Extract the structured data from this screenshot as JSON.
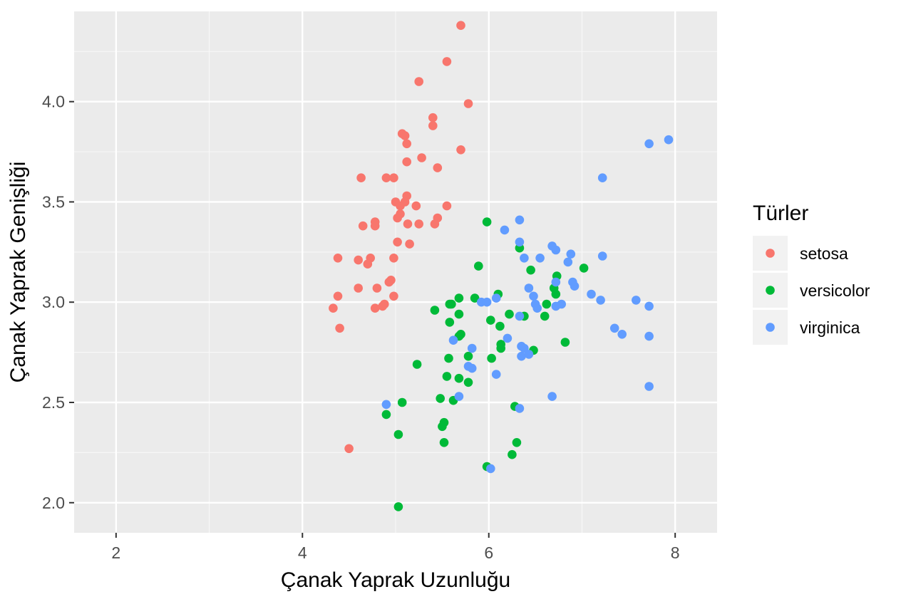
{
  "chart_data": {
    "type": "scatter",
    "title": "",
    "xlabel": "Çanak Yaprak Uzunluğu",
    "ylabel": "Çanak Yaprak Genişliği",
    "xlim": [
      1.55,
      8.45
    ],
    "ylim": [
      1.85,
      4.45
    ],
    "x_ticks": [
      2,
      4,
      6,
      8
    ],
    "x_tick_labels": [
      "2",
      "4",
      "6",
      "8"
    ],
    "y_ticks": [
      2.0,
      2.5,
      3.0,
      3.5,
      4.0
    ],
    "y_tick_labels": [
      "2.0",
      "2.5",
      "3.0",
      "3.5",
      "4.0"
    ],
    "grid": true,
    "panel_background": "#ebebeb",
    "legend": {
      "title": "Türler",
      "position": "right"
    },
    "series": [
      {
        "name": "setosa",
        "color": "#f8766d",
        "points": [
          [
            5.7,
            4.38
          ],
          [
            5.55,
            4.2
          ],
          [
            5.25,
            4.1
          ],
          [
            5.78,
            3.99
          ],
          [
            5.4,
            3.92
          ],
          [
            5.4,
            3.88
          ],
          [
            5.07,
            3.84
          ],
          [
            5.1,
            3.83
          ],
          [
            5.12,
            3.79
          ],
          [
            5.7,
            3.76
          ],
          [
            5.28,
            3.72
          ],
          [
            5.12,
            3.7
          ],
          [
            5.45,
            3.67
          ],
          [
            4.63,
            3.62
          ],
          [
            4.9,
            3.62
          ],
          [
            4.98,
            3.62
          ],
          [
            5.12,
            3.53
          ],
          [
            5.0,
            3.5
          ],
          [
            5.1,
            3.5
          ],
          [
            5.05,
            3.48
          ],
          [
            5.22,
            3.48
          ],
          [
            5.55,
            3.48
          ],
          [
            5.05,
            3.44
          ],
          [
            5.02,
            3.42
          ],
          [
            5.45,
            3.42
          ],
          [
            4.78,
            3.4
          ],
          [
            4.78,
            3.38
          ],
          [
            4.65,
            3.38
          ],
          [
            5.13,
            3.39
          ],
          [
            5.25,
            3.39
          ],
          [
            5.42,
            3.39
          ],
          [
            5.02,
            3.3
          ],
          [
            5.15,
            3.29
          ],
          [
            4.38,
            3.22
          ],
          [
            4.73,
            3.22
          ],
          [
            4.98,
            3.22
          ],
          [
            4.6,
            3.21
          ],
          [
            4.7,
            3.19
          ],
          [
            4.93,
            3.1
          ],
          [
            4.95,
            3.11
          ],
          [
            4.6,
            3.07
          ],
          [
            4.8,
            3.07
          ],
          [
            4.38,
            3.03
          ],
          [
            4.98,
            3.03
          ],
          [
            4.33,
            2.97
          ],
          [
            4.78,
            2.97
          ],
          [
            4.86,
            2.98
          ],
          [
            4.88,
            2.99
          ],
          [
            4.4,
            2.87
          ],
          [
            4.5,
            2.27
          ]
        ]
      },
      {
        "name": "versicolor",
        "color": "#00ba38",
        "points": [
          [
            5.98,
            3.4
          ],
          [
            6.33,
            3.27
          ],
          [
            5.89,
            3.18
          ],
          [
            7.02,
            3.17
          ],
          [
            6.45,
            3.16
          ],
          [
            6.73,
            3.13
          ],
          [
            6.7,
            3.07
          ],
          [
            6.72,
            3.04
          ],
          [
            6.1,
            3.04
          ],
          [
            5.68,
            3.02
          ],
          [
            5.85,
            3.02
          ],
          [
            5.58,
            2.99
          ],
          [
            5.6,
            2.99
          ],
          [
            6.62,
            2.99
          ],
          [
            5.42,
            2.96
          ],
          [
            5.68,
            2.94
          ],
          [
            6.22,
            2.94
          ],
          [
            6.38,
            2.93
          ],
          [
            6.6,
            2.93
          ],
          [
            6.02,
            2.91
          ],
          [
            5.58,
            2.9
          ],
          [
            6.12,
            2.88
          ],
          [
            5.7,
            2.84
          ],
          [
            5.68,
            2.83
          ],
          [
            6.82,
            2.8
          ],
          [
            6.13,
            2.79
          ],
          [
            6.13,
            2.77
          ],
          [
            6.48,
            2.76
          ],
          [
            5.78,
            2.73
          ],
          [
            6.03,
            2.72
          ],
          [
            5.57,
            2.72
          ],
          [
            5.23,
            2.69
          ],
          [
            5.55,
            2.63
          ],
          [
            5.68,
            2.62
          ],
          [
            5.78,
            2.6
          ],
          [
            5.48,
            2.52
          ],
          [
            5.62,
            2.51
          ],
          [
            5.07,
            2.5
          ],
          [
            6.28,
            2.48
          ],
          [
            4.9,
            2.44
          ],
          [
            5.52,
            2.4
          ],
          [
            5.5,
            2.38
          ],
          [
            5.03,
            2.34
          ],
          [
            6.3,
            2.3
          ],
          [
            5.52,
            2.3
          ],
          [
            6.25,
            2.24
          ],
          [
            5.98,
            2.18
          ],
          [
            5.03,
            1.98
          ]
        ]
      },
      {
        "name": "virginica",
        "color": "#619cff",
        "points": [
          [
            7.93,
            3.81
          ],
          [
            7.72,
            3.79
          ],
          [
            7.22,
            3.62
          ],
          [
            6.33,
            3.41
          ],
          [
            6.17,
            3.36
          ],
          [
            6.33,
            3.3
          ],
          [
            6.68,
            3.28
          ],
          [
            6.72,
            3.26
          ],
          [
            6.88,
            3.24
          ],
          [
            7.22,
            3.23
          ],
          [
            6.38,
            3.22
          ],
          [
            6.55,
            3.22
          ],
          [
            6.85,
            3.2
          ],
          [
            6.72,
            3.1
          ],
          [
            6.9,
            3.1
          ],
          [
            6.92,
            3.08
          ],
          [
            6.43,
            3.07
          ],
          [
            7.1,
            3.04
          ],
          [
            6.48,
            3.03
          ],
          [
            6.08,
            3.02
          ],
          [
            7.58,
            3.01
          ],
          [
            7.2,
            3.01
          ],
          [
            5.92,
            3.0
          ],
          [
            5.98,
            3.0
          ],
          [
            6.78,
            2.99
          ],
          [
            6.5,
            2.99
          ],
          [
            6.52,
            2.97
          ],
          [
            6.72,
            2.98
          ],
          [
            7.72,
            2.98
          ],
          [
            6.33,
            2.93
          ],
          [
            7.35,
            2.87
          ],
          [
            7.43,
            2.84
          ],
          [
            7.72,
            2.83
          ],
          [
            6.2,
            2.82
          ],
          [
            5.62,
            2.81
          ],
          [
            6.35,
            2.78
          ],
          [
            6.38,
            2.77
          ],
          [
            5.82,
            2.77
          ],
          [
            6.43,
            2.74
          ],
          [
            6.35,
            2.73
          ],
          [
            5.78,
            2.68
          ],
          [
            5.82,
            2.67
          ],
          [
            6.08,
            2.64
          ],
          [
            7.72,
            2.58
          ],
          [
            6.68,
            2.53
          ],
          [
            5.68,
            2.53
          ],
          [
            4.9,
            2.49
          ],
          [
            6.33,
            2.47
          ],
          [
            6.02,
            2.17
          ]
        ]
      }
    ]
  }
}
